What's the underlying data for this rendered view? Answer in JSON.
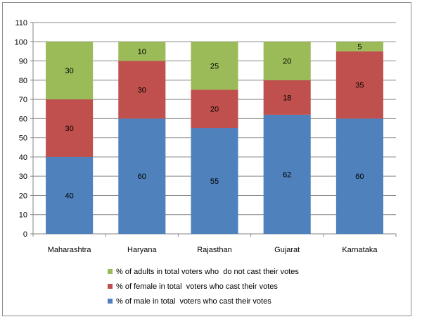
{
  "chart_data": {
    "type": "bar",
    "stacked": true,
    "title": "",
    "xlabel": "",
    "ylabel": "",
    "ylim": [
      0,
      110
    ],
    "yticks": [
      0,
      10,
      20,
      30,
      40,
      50,
      60,
      70,
      80,
      90,
      100,
      110
    ],
    "grid": "horizontal",
    "legend_position": "bottom",
    "categories": [
      "Maharashtra",
      "Haryana",
      "Rajasthan",
      "Gujarat",
      "Karnataka"
    ],
    "series": [
      {
        "name": "% of male in total  voters who cast their votes",
        "color": "#4f81bd",
        "values": [
          40,
          60,
          55,
          62,
          60
        ]
      },
      {
        "name": "% of female in total  voters who cast their votes",
        "color": "#c0504d",
        "values": [
          30,
          30,
          20,
          18,
          35
        ]
      },
      {
        "name": "% of adults in total voters who  do not cast their votes",
        "color": "#9bbb59",
        "values": [
          30,
          10,
          25,
          20,
          5
        ]
      }
    ]
  }
}
